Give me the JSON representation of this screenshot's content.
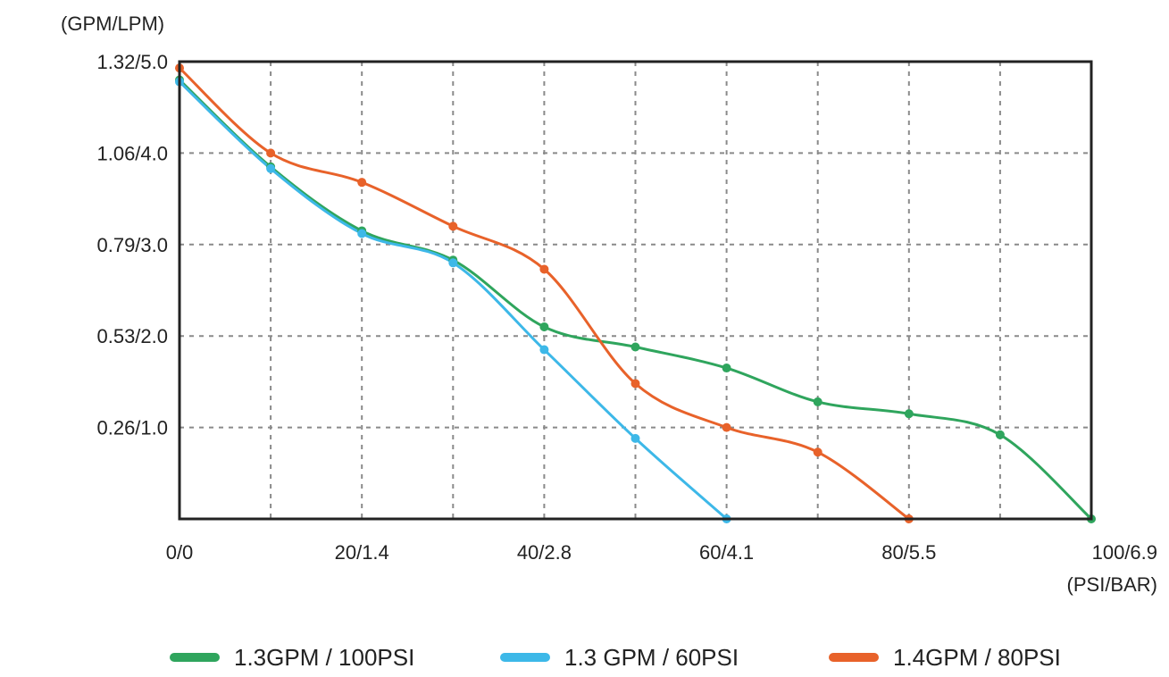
{
  "chart_data": {
    "type": "line",
    "y_axis_unit": "(GPM/LPM)",
    "x_axis_unit": "(PSI/BAR)",
    "y_ticks": [
      "1.32/5.0",
      "1.06/4.0",
      "0.79/3.0",
      "0.53/2.0",
      "0.26/1.0"
    ],
    "y_tick_values": [
      5.0,
      4.0,
      3.0,
      2.0,
      1.0
    ],
    "x_ticks": [
      "0/0",
      "20/1.4",
      "40/2.8",
      "60/4.1",
      "80/5.5",
      "100/6.9"
    ],
    "x_tick_values": [
      0,
      20,
      40,
      60,
      80,
      100
    ],
    "xlim": [
      0,
      100
    ],
    "ylim": [
      0,
      5.0
    ],
    "grid": true,
    "legend_position": "bottom",
    "series": [
      {
        "name": "1.3GPM / 100PSI",
        "color": "#2fa55d",
        "x": [
          0,
          10,
          20,
          30,
          40,
          50,
          60,
          70,
          80,
          90,
          100
        ],
        "y": [
          4.8,
          3.85,
          3.15,
          2.83,
          2.1,
          1.88,
          1.65,
          1.28,
          1.15,
          0.92,
          0.0
        ]
      },
      {
        "name": "1.3 GPM / 60PSI",
        "color": "#3db8e8",
        "x": [
          0,
          10,
          20,
          30,
          40,
          50,
          60
        ],
        "y": [
          4.78,
          3.83,
          3.12,
          2.8,
          1.85,
          0.88,
          0.0
        ]
      },
      {
        "name": "1.4GPM / 80PSI",
        "color": "#e8622a",
        "x": [
          0,
          10,
          20,
          30,
          40,
          50,
          60,
          70,
          80
        ],
        "y": [
          4.93,
          4.0,
          3.68,
          3.2,
          2.73,
          1.48,
          1.0,
          0.73,
          0.0
        ]
      }
    ]
  }
}
